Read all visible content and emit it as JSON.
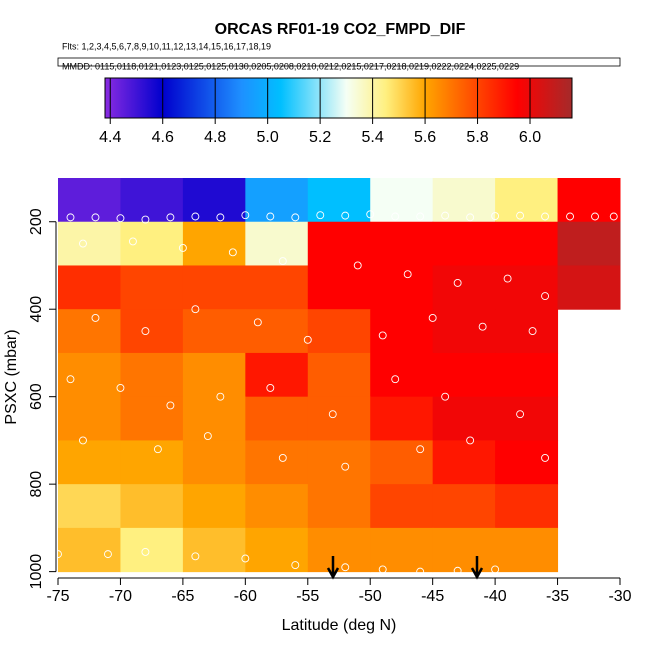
{
  "chart_data": {
    "type": "heatmap",
    "title": "ORCAS RF01-19 CO2_FMPD_DIF",
    "subtitle": "Flts: 1,2,3,4,5,6,7,8,9,10,11,12,13,14,15,16,17,18,19",
    "annotation": "MMDD: 0115,0118,0121,0123,0125,0125,0130,0205,0208,0210,0212,0215,0217,0218,0219,0222,0224,0225,0229",
    "x_label": "Latitude (deg N)",
    "y_label": "PSXC (mbar)",
    "xlim": [
      -75,
      -30
    ],
    "ylim": [
      1010,
      100
    ],
    "xticks": [
      -75,
      -70,
      -65,
      -60,
      -55,
      -50,
      -45,
      -40,
      -35,
      -30
    ],
    "yticks": [
      200,
      400,
      600,
      800,
      1000
    ],
    "x_edges": [
      -75,
      -70,
      -65,
      -60,
      -55,
      -50,
      -45,
      -40,
      -35,
      -30
    ],
    "y_edges": [
      100,
      200,
      300,
      400,
      500,
      600,
      700,
      800,
      900,
      1000
    ],
    "z": [
      [
        4.45,
        4.5,
        4.55,
        4.95,
        5.05,
        5.3,
        5.35,
        5.45,
        5.95
      ],
      [
        5.4,
        5.45,
        5.6,
        5.35,
        5.95,
        5.95,
        5.95,
        5.95,
        6.1
      ],
      [
        5.85,
        5.8,
        5.8,
        5.8,
        5.95,
        5.95,
        5.98,
        5.98,
        6.05
      ],
      [
        5.7,
        5.8,
        5.75,
        5.75,
        5.8,
        5.95,
        5.98,
        5.98,
        null
      ],
      [
        5.65,
        5.7,
        5.65,
        5.9,
        5.75,
        5.95,
        5.95,
        5.95,
        null
      ],
      [
        5.65,
        5.7,
        5.65,
        5.75,
        5.75,
        5.9,
        5.98,
        5.98,
        null
      ],
      [
        5.6,
        5.6,
        5.65,
        5.7,
        5.7,
        5.75,
        5.9,
        5.95,
        null
      ],
      [
        5.5,
        5.55,
        5.6,
        5.65,
        5.7,
        5.8,
        5.8,
        5.85,
        null
      ],
      [
        5.55,
        5.45,
        5.55,
        5.6,
        5.65,
        5.65,
        5.65,
        5.65,
        null
      ]
    ],
    "colorbar_lim": [
      4.38,
      6.16
    ],
    "colorbar_ticks": [
      4.4,
      4.6,
      4.8,
      5.0,
      5.2,
      5.4,
      5.6,
      5.8,
      6.0
    ],
    "colormap": [
      {
        "value": 4.38,
        "color": "#8a2be2"
      },
      {
        "value": 4.6,
        "color": "#0000cd"
      },
      {
        "value": 4.9,
        "color": "#1e90ff"
      },
      {
        "value": 5.05,
        "color": "#00bfff"
      },
      {
        "value": 5.3,
        "color": "#f5fff5"
      },
      {
        "value": 5.45,
        "color": "#fff080"
      },
      {
        "value": 5.6,
        "color": "#ffa500"
      },
      {
        "value": 5.8,
        "color": "#ff4500"
      },
      {
        "value": 5.95,
        "color": "#ff0000"
      },
      {
        "value": 6.16,
        "color": "#a52a2a"
      }
    ],
    "points": {
      "x": [
        -74,
        -72,
        -70,
        -68,
        -66,
        -64,
        -62,
        -60,
        -58,
        -56,
        -54,
        -52,
        -50,
        -48,
        -46,
        -44,
        -42,
        -40,
        -38,
        -36,
        -34,
        -32,
        -30.5,
        -73,
        -69,
        -65,
        -61,
        -57,
        -51,
        -47,
        -43,
        -39,
        -36,
        -72,
        -68,
        -64,
        -59,
        -55,
        -49,
        -45,
        -41,
        -37,
        -74,
        -70,
        -66,
        -62,
        -58,
        -53,
        -48,
        -44,
        -38,
        -73,
        -67,
        -63,
        -57,
        -52,
        -46,
        -42,
        -36,
        -75,
        -71,
        -68,
        -64,
        -60,
        -56,
        -52,
        -49,
        -46,
        -43,
        -40
      ],
      "y": [
        190,
        190,
        192,
        195,
        190,
        188,
        190,
        185,
        188,
        190,
        185,
        186,
        183,
        188,
        188,
        186,
        190,
        187,
        186,
        188,
        188,
        188,
        188,
        250,
        245,
        260,
        270,
        290,
        300,
        320,
        340,
        330,
        370,
        420,
        450,
        400,
        430,
        470,
        460,
        420,
        440,
        450,
        560,
        580,
        620,
        600,
        580,
        640,
        560,
        600,
        640,
        700,
        720,
        690,
        740,
        760,
        720,
        700,
        740,
        960,
        960,
        955,
        965,
        970,
        985,
        990,
        995,
        1000,
        998,
        995
      ]
    }
  }
}
